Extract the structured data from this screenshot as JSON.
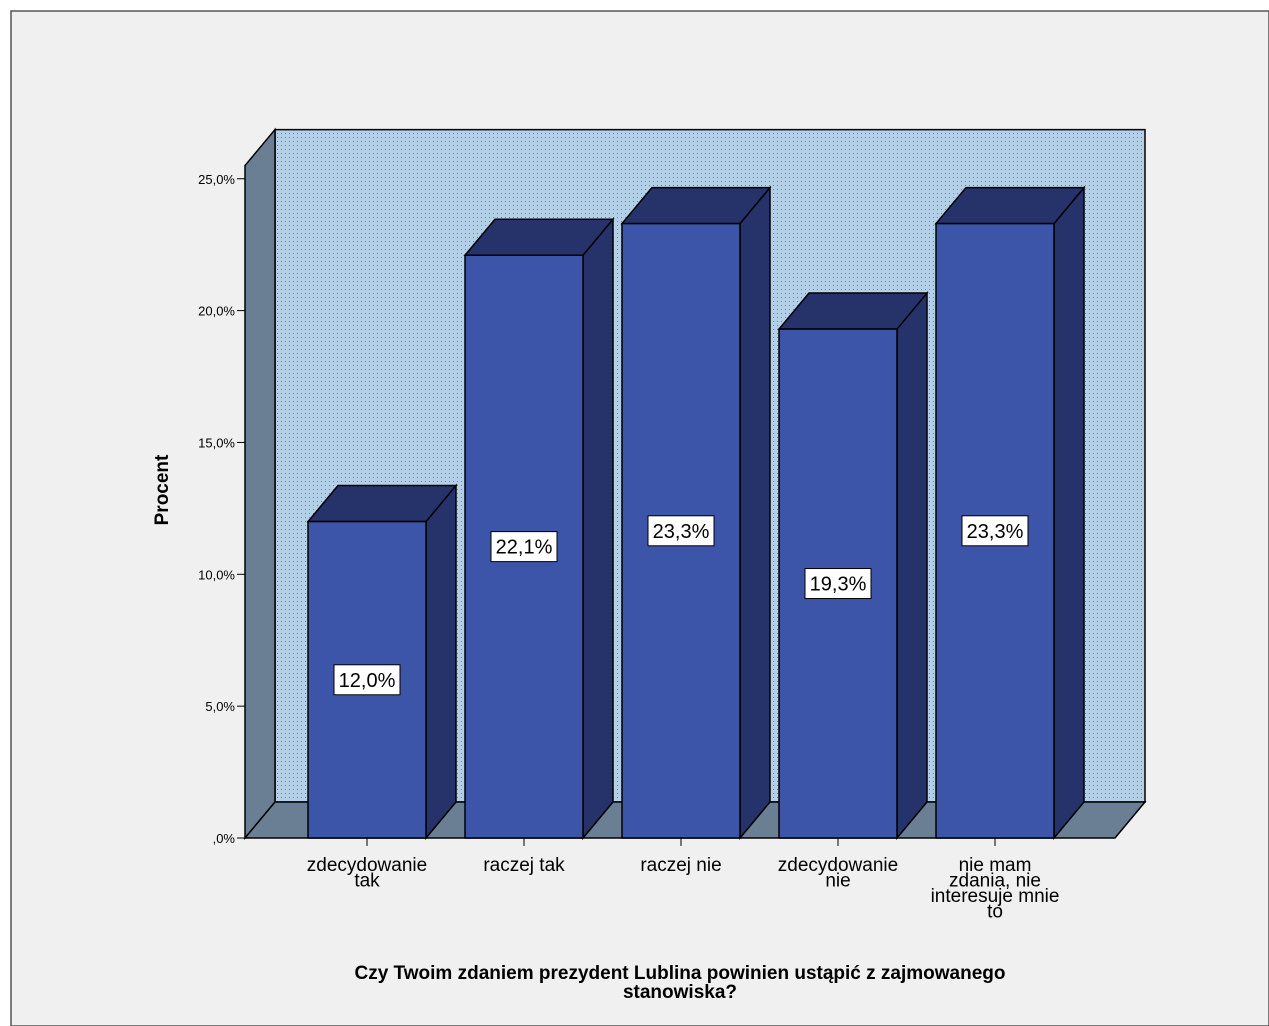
{
  "chart_data": {
    "type": "bar",
    "categories": [
      [
        "zdecydowanie",
        "tak"
      ],
      [
        "raczej tak"
      ],
      [
        "raczej nie"
      ],
      [
        "zdecydowanie",
        "nie"
      ],
      [
        "nie mam",
        "zdania, nie",
        "interesuje mnie",
        "to"
      ]
    ],
    "values": [
      12.0,
      22.1,
      23.3,
      19.3,
      23.3
    ],
    "data_labels": [
      "12,0%",
      "22,1%",
      "23,3%",
      "19,3%",
      "23,3%"
    ],
    "yticks": [
      0,
      5,
      10,
      15,
      20,
      25
    ],
    "ytick_labels": [
      ",0%",
      "5,0%",
      "10,0%",
      "15,0%",
      "20,0%",
      "25,0%"
    ],
    "ylabel": "Procent",
    "xlabel": [
      "Czy Twoim zdaniem prezydent Lublina powinien ustąpić z zajmowanego",
      "stanowiska?"
    ],
    "ylim": [
      0,
      25.5
    ],
    "style": "3d",
    "colors": {
      "bar_front": "#3c55a8",
      "bar_side": "#25336a",
      "bar_top": "#25336a",
      "back_wall": "#b4d0e9",
      "side_wall": "#6b7f94",
      "floor": "#6b7f94",
      "chart_background": "#f0f0f0"
    }
  }
}
